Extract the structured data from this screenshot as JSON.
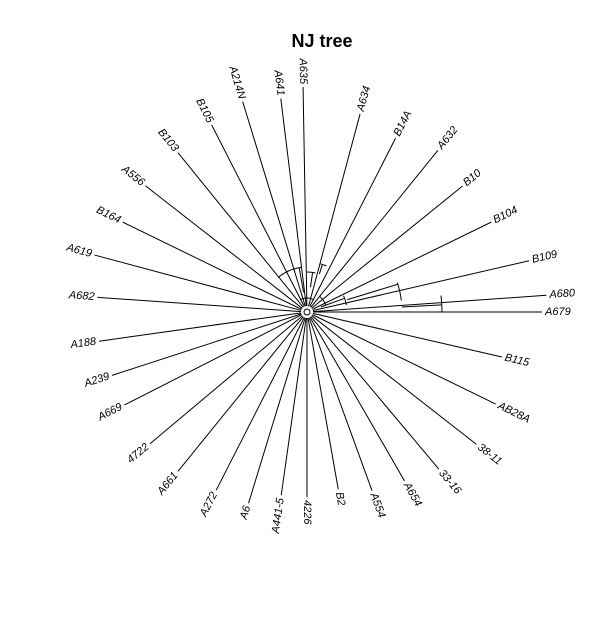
{
  "title": "NJ tree",
  "tree": {
    "layout": "radial (fan)",
    "tips": [
      "A635",
      "A634",
      "B14A",
      "A632",
      "B10",
      "B104",
      "B109",
      "A680",
      "A679",
      "B115",
      "AB28A",
      "38-11",
      "33-16",
      "A654",
      "A554",
      "B2",
      "4226",
      "A441-5",
      "A6",
      "A272",
      "A661",
      "4722",
      "A669",
      "A239",
      "A188",
      "A682",
      "A619",
      "B164",
      "A556",
      "B103",
      "B105",
      "A214N",
      "A641"
    ]
  }
}
